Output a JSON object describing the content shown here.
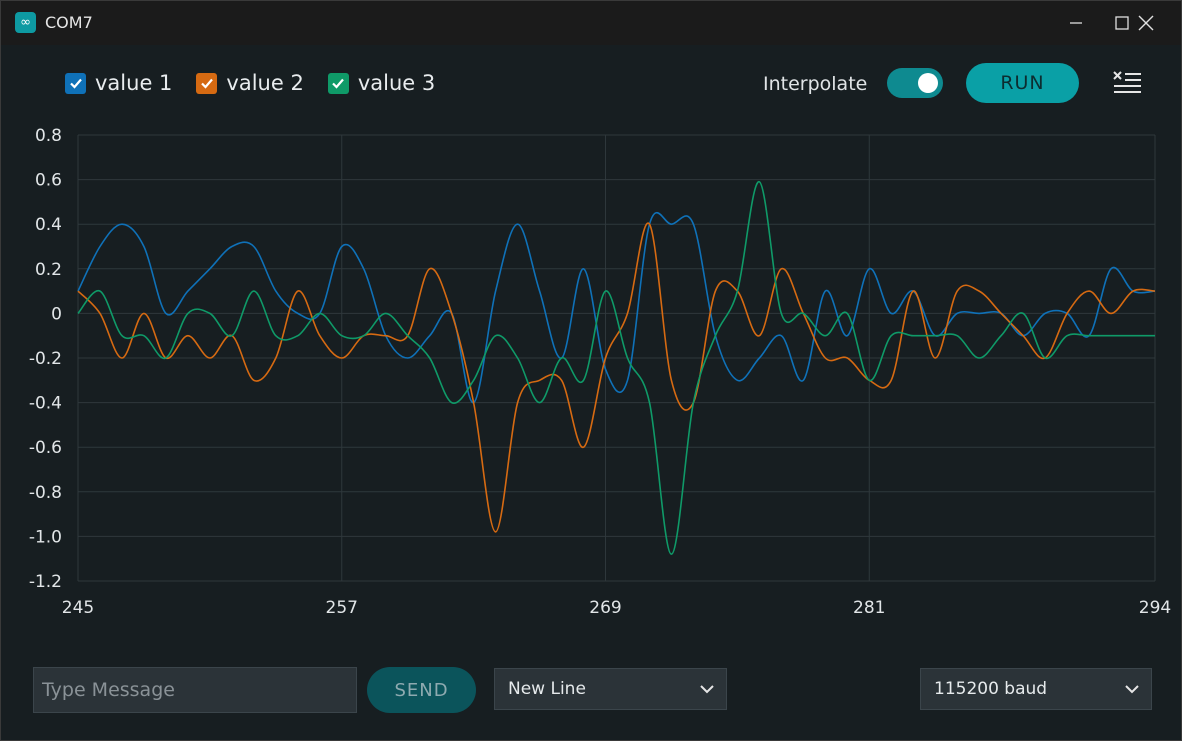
{
  "window": {
    "title": "COM7"
  },
  "legend": [
    {
      "label": "value 1",
      "color": "#0f71b8",
      "checked": true
    },
    {
      "label": "value 2",
      "color": "#d66a12",
      "checked": true
    },
    {
      "label": "value 3",
      "color": "#0f9a68",
      "checked": true
    }
  ],
  "toolbar": {
    "interpolate_label": "Interpolate",
    "interpolate_on": true,
    "run_label": "RUN"
  },
  "footer": {
    "message_placeholder": "Type Message",
    "send_label": "SEND",
    "line_ending": "New Line",
    "baud": "115200 baud"
  },
  "icons": {
    "app": "arduino-icon",
    "clear": "clear-list-icon",
    "dropdown": "chevron-down-icon"
  },
  "chart_data": {
    "type": "line",
    "xlim": [
      245,
      294
    ],
    "ylim": [
      -1.2,
      0.8
    ],
    "x_ticks": [
      "245",
      "257",
      "269",
      "281",
      "294"
    ],
    "x_tick_values": [
      245,
      257,
      269,
      281,
      294
    ],
    "y_ticks": [
      "0.8",
      "0.6",
      "0.4",
      "0.2",
      "0",
      "-0.2",
      "-0.4",
      "-0.6",
      "-0.8",
      "-1.0",
      "-1.2"
    ],
    "y_tick_values": [
      0.8,
      0.6,
      0.4,
      0.2,
      0,
      -0.2,
      -0.4,
      -0.6,
      -0.8,
      -1.0,
      -1.2
    ],
    "grid": true,
    "series": [
      {
        "name": "value 1",
        "color": "#0f71b8",
        "x": [
          245,
          246,
          247,
          248,
          249,
          250,
          251,
          252,
          253,
          254,
          255,
          256,
          257,
          258,
          259,
          260,
          261,
          262,
          263,
          264,
          265,
          266,
          267,
          268,
          269,
          270,
          271,
          272,
          273,
          274,
          275,
          276,
          277,
          278,
          279,
          280,
          281,
          282,
          283,
          284,
          285,
          286,
          287,
          288,
          289,
          290,
          291,
          292,
          293,
          294
        ],
        "y": [
          0.1,
          0.3,
          0.4,
          0.3,
          0.0,
          0.1,
          0.2,
          0.3,
          0.3,
          0.1,
          0.0,
          0.0,
          0.3,
          0.2,
          -0.1,
          -0.2,
          -0.1,
          0.0,
          -0.4,
          0.1,
          0.4,
          0.1,
          -0.2,
          0.2,
          -0.25,
          -0.3,
          0.4,
          0.4,
          0.4,
          -0.1,
          -0.3,
          -0.2,
          -0.1,
          -0.3,
          0.1,
          -0.1,
          0.2,
          0.0,
          0.1,
          -0.1,
          0.0,
          0.0,
          0.0,
          -0.1,
          0.0,
          0.0,
          -0.1,
          0.2,
          0.1,
          0.1
        ]
      },
      {
        "name": "value 2",
        "color": "#d66a12",
        "x": [
          245,
          246,
          247,
          248,
          249,
          250,
          251,
          252,
          253,
          254,
          255,
          256,
          257,
          258,
          259,
          260,
          261,
          262,
          263,
          264,
          265,
          266,
          267,
          268,
          269,
          270,
          271,
          272,
          273,
          274,
          275,
          276,
          277,
          278,
          279,
          280,
          281,
          282,
          283,
          284,
          285,
          286,
          287,
          288,
          289,
          290,
          291,
          292,
          293,
          294
        ],
        "y": [
          0.1,
          0.0,
          -0.2,
          0.0,
          -0.2,
          -0.1,
          -0.2,
          -0.1,
          -0.3,
          -0.2,
          0.1,
          -0.1,
          -0.2,
          -0.1,
          -0.1,
          -0.1,
          0.2,
          0.0,
          -0.4,
          -0.98,
          -0.4,
          -0.3,
          -0.3,
          -0.6,
          -0.2,
          0.0,
          0.4,
          -0.3,
          -0.4,
          0.1,
          0.1,
          -0.1,
          0.2,
          0.0,
          -0.2,
          -0.2,
          -0.3,
          -0.3,
          0.1,
          -0.2,
          0.1,
          0.1,
          0.0,
          -0.1,
          -0.2,
          0.0,
          0.1,
          0.0,
          0.1,
          0.1
        ]
      },
      {
        "name": "value 3",
        "color": "#0f9a68",
        "x": [
          245,
          246,
          247,
          248,
          249,
          250,
          251,
          252,
          253,
          254,
          255,
          256,
          257,
          258,
          259,
          260,
          261,
          262,
          263,
          264,
          265,
          266,
          267,
          268,
          269,
          270,
          271,
          272,
          273,
          274,
          275,
          276,
          277,
          278,
          279,
          280,
          281,
          282,
          283,
          284,
          285,
          286,
          287,
          288,
          289,
          290,
          291,
          292,
          293,
          294
        ],
        "y": [
          0.0,
          0.1,
          -0.1,
          -0.1,
          -0.2,
          0.0,
          0.0,
          -0.1,
          0.1,
          -0.1,
          -0.1,
          0.0,
          -0.1,
          -0.1,
          0.0,
          -0.1,
          -0.2,
          -0.4,
          -0.3,
          -0.1,
          -0.2,
          -0.4,
          -0.2,
          -0.3,
          0.1,
          -0.2,
          -0.4,
          -1.08,
          -0.4,
          -0.1,
          0.1,
          0.59,
          0.0,
          0.0,
          -0.1,
          0.0,
          -0.3,
          -0.1,
          -0.1,
          -0.1,
          -0.1,
          -0.2,
          -0.1,
          0.0,
          -0.2,
          -0.1,
          -0.1,
          -0.1,
          -0.1,
          -0.1
        ]
      }
    ]
  }
}
